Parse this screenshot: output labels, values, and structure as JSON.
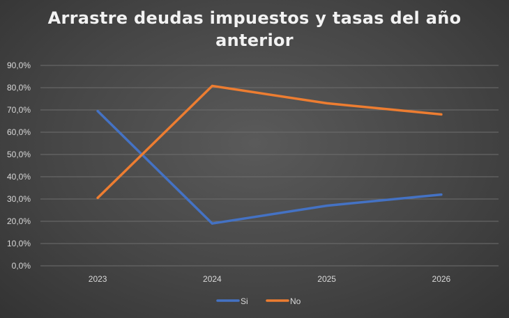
{
  "chart_data": {
    "type": "line",
    "title": "Arrastre deudas impuestos y tasas del año anterior",
    "categories": [
      "2023",
      "2024",
      "2025",
      "2026"
    ],
    "series": [
      {
        "name": "Si",
        "values": [
          69.5,
          19.0,
          27.0,
          32.0
        ],
        "color": "#4472c4"
      },
      {
        "name": "No",
        "values": [
          30.5,
          80.8,
          73.0,
          68.0
        ],
        "color": "#ed7d31"
      }
    ],
    "ylim": [
      0,
      90
    ],
    "yticks": [
      "0,0%",
      "10,0%",
      "20,0%",
      "30,0%",
      "40,0%",
      "50,0%",
      "60,0%",
      "70,0%",
      "80,0%",
      "90,0%"
    ],
    "grid": true,
    "legend_position": "bottom",
    "gridline_color": "#6e6e6e"
  }
}
